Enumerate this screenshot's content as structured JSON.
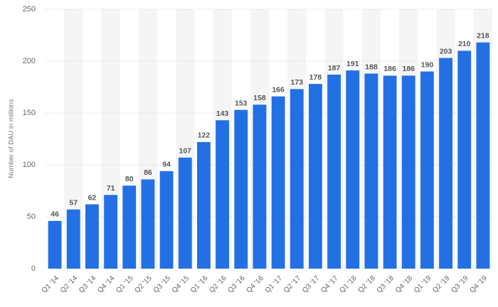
{
  "chart_data": {
    "type": "bar",
    "y_label": "Number of DAU in millions",
    "categories": [
      "Q1 '14",
      "Q2 '14",
      "Q3 '14",
      "Q4 '14",
      "Q1 '15",
      "Q2 '15",
      "Q3 '15",
      "Q4 '15",
      "Q1 '16",
      "Q2 '16",
      "Q3 '16",
      "Q4 '16",
      "Q1 '17",
      "Q2 '17",
      "Q3 '17",
      "Q4 '17",
      "Q1 '18",
      "Q2 '18",
      "Q3 '18",
      "Q4 '18",
      "Q1 '19",
      "Q2 '19",
      "Q3 '19",
      "Q4 '19"
    ],
    "values": [
      46,
      57,
      62,
      71,
      80,
      86,
      94,
      107,
      122,
      143,
      153,
      158,
      166,
      173,
      178,
      187,
      191,
      188,
      186,
      186,
      190,
      203,
      210,
      218
    ],
    "color": "#2370e4",
    "ylim": [
      0,
      250
    ],
    "yticks": [
      0,
      50,
      100,
      150,
      200,
      250
    ],
    "grid": true
  }
}
